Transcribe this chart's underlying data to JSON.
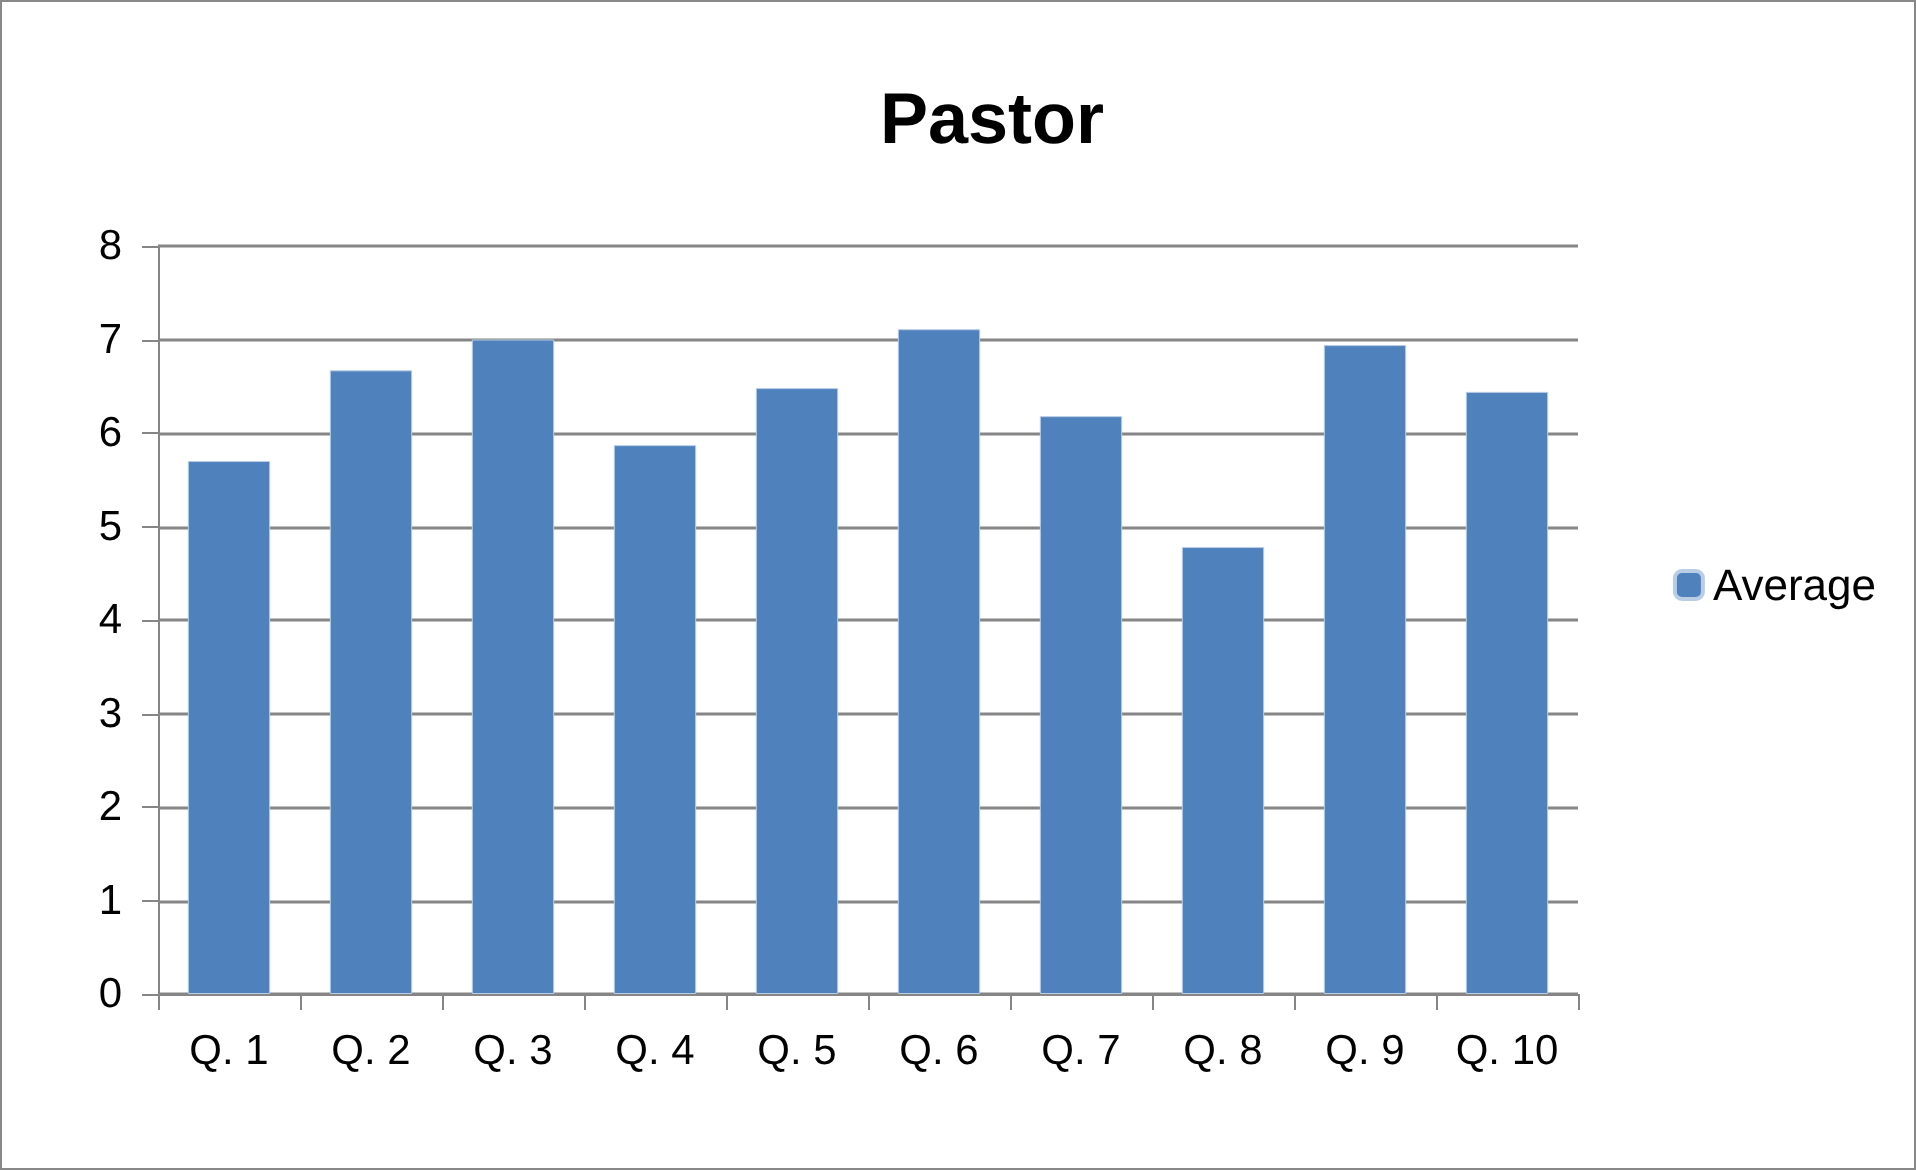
{
  "chart_data": {
    "type": "bar",
    "title": "Pastor",
    "categories": [
      "Q. 1",
      "Q. 2",
      "Q. 3",
      "Q. 4",
      "Q. 5",
      "Q. 6",
      "Q. 7",
      "Q. 8",
      "Q. 9",
      "Q. 10"
    ],
    "series": [
      {
        "name": "Average",
        "color": "#4f81bd",
        "values": [
          5.7,
          6.67,
          7.0,
          5.87,
          6.48,
          7.11,
          6.18,
          4.78,
          6.94,
          6.44
        ]
      }
    ],
    "ylim": [
      0,
      8
    ],
    "yticks": [
      0,
      1,
      2,
      3,
      4,
      5,
      6,
      7,
      8
    ],
    "grid": "y",
    "legend": "right"
  }
}
